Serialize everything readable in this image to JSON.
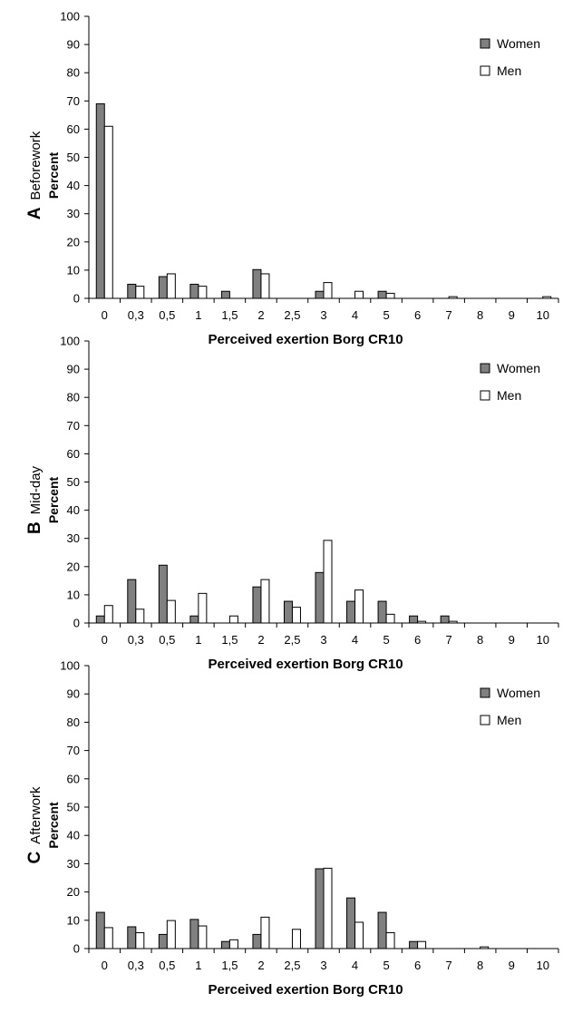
{
  "colors": {
    "women": "#808080",
    "men": "#ffffff",
    "stroke": "#000000"
  },
  "chart_data": [
    {
      "type": "bar",
      "panel_letter": "A",
      "panel_label": "Beforework",
      "ylabel": "Percent",
      "xlabel": "Perceived exertion Borg CR10",
      "categories": [
        "0",
        "0,3",
        "0,5",
        "1",
        "1,5",
        "2",
        "2,5",
        "3",
        "4",
        "5",
        "6",
        "7",
        "8",
        "9",
        "10"
      ],
      "ylim": [
        0,
        100
      ],
      "yticks": [
        0,
        10,
        20,
        30,
        40,
        50,
        60,
        70,
        80,
        90,
        100
      ],
      "legend": "top-right",
      "grid": false,
      "series": [
        {
          "name": "Women",
          "values": [
            69,
            5,
            7.7,
            5,
            2.5,
            10.2,
            0,
            2.5,
            0,
            2.5,
            0,
            0,
            0,
            0,
            0
          ]
        },
        {
          "name": "Men",
          "values": [
            61,
            4.3,
            8.7,
            4.3,
            0,
            8.7,
            0,
            5.6,
            2.5,
            1.8,
            0,
            0.6,
            0,
            0,
            0.6
          ]
        }
      ]
    },
    {
      "type": "bar",
      "panel_letter": "B",
      "panel_label": "Mid-day",
      "ylabel": "Percent",
      "xlabel": "Perceived exertion Borg CR10",
      "categories": [
        "0",
        "0,3",
        "0,5",
        "1",
        "1,5",
        "2",
        "2,5",
        "3",
        "4",
        "5",
        "6",
        "7",
        "8",
        "9",
        "10"
      ],
      "ylim": [
        0,
        100
      ],
      "yticks": [
        0,
        10,
        20,
        30,
        40,
        50,
        60,
        70,
        80,
        90,
        100
      ],
      "legend": "top-right",
      "grid": false,
      "series": [
        {
          "name": "Women",
          "values": [
            2.5,
            15.4,
            20.5,
            2.5,
            0,
            12.8,
            7.7,
            17.9,
            7.7,
            7.7,
            2.5,
            2.5,
            0,
            0,
            0
          ]
        },
        {
          "name": "Men",
          "values": [
            6.2,
            4.9,
            8,
            10.5,
            2.5,
            15.4,
            5.6,
            29.3,
            11.7,
            3.1,
            0.6,
            0.6,
            0,
            0,
            0
          ]
        }
      ]
    },
    {
      "type": "bar",
      "panel_letter": "C",
      "panel_label": "Afterwork",
      "ylabel": "Percent",
      "xlabel": "Perceived exertion Borg CR10",
      "categories": [
        "0",
        "0,3",
        "0,5",
        "1",
        "1,5",
        "2",
        "2,5",
        "3",
        "4",
        "5",
        "6",
        "7",
        "8",
        "9",
        "10"
      ],
      "ylim": [
        0,
        100
      ],
      "yticks": [
        0,
        10,
        20,
        30,
        40,
        50,
        60,
        70,
        80,
        90,
        100
      ],
      "legend": "top-right",
      "grid": false,
      "series": [
        {
          "name": "Women",
          "values": [
            12.8,
            7.7,
            5,
            10.3,
            2.5,
            5,
            0,
            28.2,
            17.9,
            12.8,
            2.5,
            0,
            0,
            0,
            0
          ]
        },
        {
          "name": "Men",
          "values": [
            7.4,
            5.6,
            9.9,
            8,
            3.1,
            11.1,
            6.8,
            28.4,
            9.3,
            5.6,
            2.5,
            0,
            0.6,
            0,
            0
          ]
        }
      ]
    }
  ]
}
